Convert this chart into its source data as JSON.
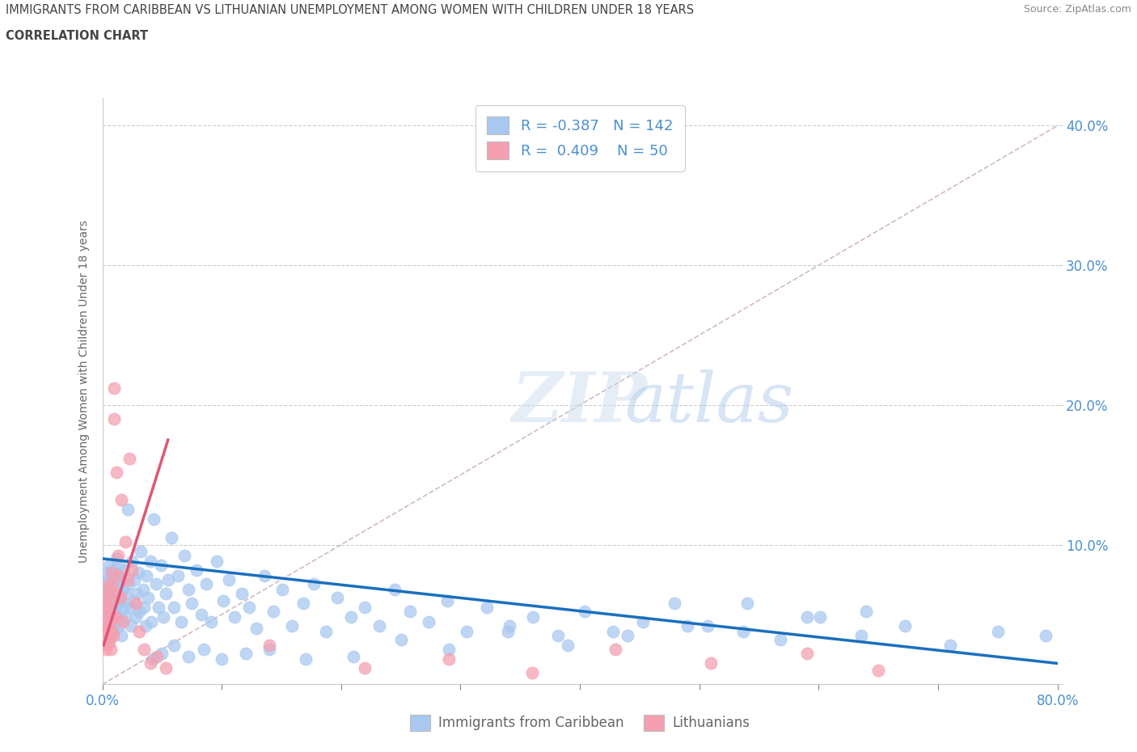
{
  "title": "IMMIGRANTS FROM CARIBBEAN VS LITHUANIAN UNEMPLOYMENT AMONG WOMEN WITH CHILDREN UNDER 18 YEARS",
  "subtitle": "CORRELATION CHART",
  "source": "Source: ZipAtlas.com",
  "ylabel": "Unemployment Among Women with Children Under 18 years",
  "xlim": [
    0.0,
    0.8
  ],
  "ylim": [
    0.0,
    0.42
  ],
  "blue_R": -0.387,
  "blue_N": 142,
  "pink_R": 0.409,
  "pink_N": 50,
  "blue_color": "#a8c8f0",
  "pink_color": "#f4a0b0",
  "blue_line_color": "#1a6fbd",
  "pink_line_color": "#e05575",
  "diagonal_color": "#c8a8b0",
  "tick_color": "#4a90d0",
  "label_color": "#666666",
  "background_color": "#ffffff",
  "blue_scatter_x": [
    0.002,
    0.002,
    0.003,
    0.003,
    0.003,
    0.004,
    0.004,
    0.004,
    0.005,
    0.005,
    0.005,
    0.005,
    0.006,
    0.006,
    0.006,
    0.006,
    0.007,
    0.007,
    0.007,
    0.008,
    0.008,
    0.008,
    0.009,
    0.009,
    0.009,
    0.01,
    0.01,
    0.01,
    0.011,
    0.011,
    0.012,
    0.012,
    0.012,
    0.013,
    0.013,
    0.014,
    0.014,
    0.015,
    0.015,
    0.016,
    0.016,
    0.017,
    0.018,
    0.018,
    0.019,
    0.02,
    0.021,
    0.022,
    0.023,
    0.024,
    0.025,
    0.026,
    0.027,
    0.028,
    0.029,
    0.03,
    0.031,
    0.032,
    0.034,
    0.035,
    0.036,
    0.037,
    0.038,
    0.04,
    0.041,
    0.043,
    0.045,
    0.047,
    0.049,
    0.051,
    0.053,
    0.055,
    0.058,
    0.06,
    0.063,
    0.066,
    0.069,
    0.072,
    0.075,
    0.079,
    0.083,
    0.087,
    0.091,
    0.096,
    0.101,
    0.106,
    0.111,
    0.117,
    0.123,
    0.129,
    0.136,
    0.143,
    0.151,
    0.159,
    0.168,
    0.177,
    0.187,
    0.197,
    0.208,
    0.22,
    0.232,
    0.245,
    0.258,
    0.273,
    0.289,
    0.305,
    0.322,
    0.341,
    0.361,
    0.382,
    0.404,
    0.428,
    0.453,
    0.479,
    0.507,
    0.537,
    0.568,
    0.601,
    0.636,
    0.672,
    0.71,
    0.75,
    0.79,
    0.64,
    0.59,
    0.54,
    0.49,
    0.44,
    0.39,
    0.34,
    0.29,
    0.25,
    0.21,
    0.17,
    0.14,
    0.12,
    0.1,
    0.085,
    0.072,
    0.06,
    0.05,
    0.042
  ],
  "blue_scatter_y": [
    0.062,
    0.048,
    0.055,
    0.072,
    0.038,
    0.065,
    0.045,
    0.08,
    0.058,
    0.042,
    0.075,
    0.032,
    0.068,
    0.052,
    0.085,
    0.04,
    0.07,
    0.055,
    0.038,
    0.065,
    0.048,
    0.082,
    0.06,
    0.042,
    0.075,
    0.055,
    0.068,
    0.038,
    0.08,
    0.052,
    0.065,
    0.045,
    0.09,
    0.058,
    0.072,
    0.042,
    0.085,
    0.06,
    0.048,
    0.075,
    0.035,
    0.068,
    0.055,
    0.082,
    0.048,
    0.065,
    0.125,
    0.072,
    0.055,
    0.042,
    0.088,
    0.06,
    0.075,
    0.048,
    0.065,
    0.08,
    0.052,
    0.095,
    0.068,
    0.055,
    0.042,
    0.078,
    0.062,
    0.088,
    0.045,
    0.118,
    0.072,
    0.055,
    0.085,
    0.048,
    0.065,
    0.075,
    0.105,
    0.055,
    0.078,
    0.045,
    0.092,
    0.068,
    0.058,
    0.082,
    0.05,
    0.072,
    0.045,
    0.088,
    0.06,
    0.075,
    0.048,
    0.065,
    0.055,
    0.04,
    0.078,
    0.052,
    0.068,
    0.042,
    0.058,
    0.072,
    0.038,
    0.062,
    0.048,
    0.055,
    0.042,
    0.068,
    0.052,
    0.045,
    0.06,
    0.038,
    0.055,
    0.042,
    0.048,
    0.035,
    0.052,
    0.038,
    0.045,
    0.058,
    0.042,
    0.038,
    0.032,
    0.048,
    0.035,
    0.042,
    0.028,
    0.038,
    0.035,
    0.052,
    0.048,
    0.058,
    0.042,
    0.035,
    0.028,
    0.038,
    0.025,
    0.032,
    0.02,
    0.018,
    0.025,
    0.022,
    0.018,
    0.025,
    0.02,
    0.028,
    0.022,
    0.018
  ],
  "pink_scatter_x": [
    0.002,
    0.002,
    0.003,
    0.003,
    0.003,
    0.004,
    0.004,
    0.004,
    0.005,
    0.005,
    0.005,
    0.006,
    0.006,
    0.006,
    0.007,
    0.007,
    0.007,
    0.008,
    0.008,
    0.008,
    0.009,
    0.009,
    0.01,
    0.01,
    0.011,
    0.011,
    0.012,
    0.013,
    0.014,
    0.015,
    0.016,
    0.017,
    0.019,
    0.021,
    0.023,
    0.025,
    0.028,
    0.031,
    0.035,
    0.04,
    0.046,
    0.053,
    0.14,
    0.22,
    0.29,
    0.36,
    0.43,
    0.51,
    0.59,
    0.65
  ],
  "pink_scatter_y": [
    0.045,
    0.032,
    0.055,
    0.025,
    0.062,
    0.04,
    0.05,
    0.028,
    0.068,
    0.038,
    0.055,
    0.03,
    0.072,
    0.042,
    0.035,
    0.06,
    0.025,
    0.07,
    0.038,
    0.08,
    0.048,
    0.035,
    0.19,
    0.212,
    0.048,
    0.065,
    0.152,
    0.092,
    0.078,
    0.062,
    0.132,
    0.045,
    0.102,
    0.075,
    0.162,
    0.082,
    0.058,
    0.038,
    0.025,
    0.015,
    0.02,
    0.012,
    0.028,
    0.012,
    0.018,
    0.008,
    0.025,
    0.015,
    0.022,
    0.01
  ]
}
